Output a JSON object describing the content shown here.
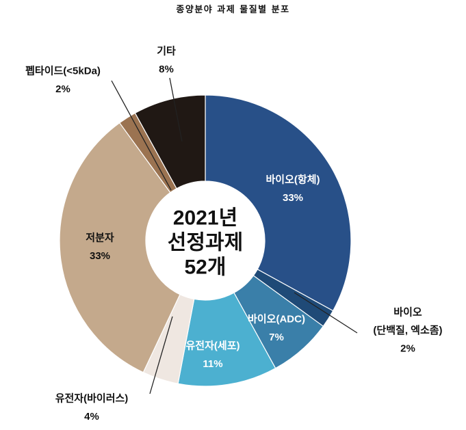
{
  "chart_data": {
    "type": "pie",
    "hole": true,
    "title": "종양분야 과제 물질별 분포",
    "center_text": [
      "2021년",
      "선정과제",
      "52개"
    ],
    "slices": [
      {
        "label_lines": [
          "바이오(항체)"
        ],
        "value": 33,
        "value_text": "33%",
        "color": "#285088"
      },
      {
        "label_lines": [
          "바이오",
          "(단백질, 엑소좀)"
        ],
        "value": 2,
        "value_text": "2%",
        "color": "#1f4a77"
      },
      {
        "label_lines": [
          "바이오(ADC)"
        ],
        "value": 7,
        "value_text": "7%",
        "color": "#3a7fa9"
      },
      {
        "label_lines": [
          "유전자(세포)"
        ],
        "value": 11,
        "value_text": "11%",
        "color": "#4cb0d0"
      },
      {
        "label_lines": [
          "유전자(바이러스)"
        ],
        "value": 4,
        "value_text": "4%",
        "color": "#efe7e1"
      },
      {
        "label_lines": [
          "저분자"
        ],
        "value": 33,
        "value_text": "33%",
        "color": "#c4a98c"
      },
      {
        "label_lines": [
          "펩타이드(<5kDa)"
        ],
        "value": 2,
        "value_text": "2%",
        "color": "#9b7351"
      },
      {
        "label_lines": [
          "기타"
        ],
        "value": 8,
        "value_text": "8%",
        "color": "#201814"
      }
    ]
  }
}
